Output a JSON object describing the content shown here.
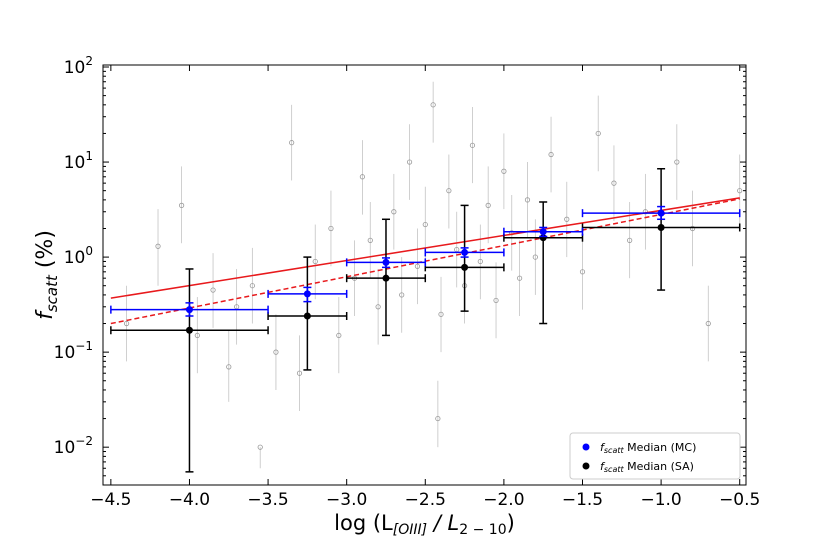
{
  "chart_data": {
    "type": "scatter",
    "xlabel": [
      {
        "text": "log (L",
        "italic": false
      },
      {
        "text": "[OIII]",
        "italic": true,
        "sub": true
      },
      {
        "text": " / L",
        "italic": true
      },
      {
        "text": "2 − 10",
        "italic": false,
        "sub": true
      },
      {
        "text": ")",
        "italic": false
      }
    ],
    "ylabel": [
      {
        "text": "f",
        "italic": true
      },
      {
        "text": "scatt",
        "italic": true,
        "sub": true
      },
      {
        "text": "  (%)",
        "italic": false
      }
    ],
    "xlim": [
      -4.55,
      -0.46
    ],
    "ylim": [
      0.004,
      105
    ],
    "log_y": true,
    "xticks": [
      {
        "value": -4.5,
        "label": "−4.5"
      },
      {
        "value": -4.0,
        "label": "−4.0"
      },
      {
        "value": -3.5,
        "label": "−3.5"
      },
      {
        "value": -3.0,
        "label": "−3.0"
      },
      {
        "value": -2.5,
        "label": "−2.5"
      },
      {
        "value": -2.0,
        "label": "−2.0"
      },
      {
        "value": -1.5,
        "label": "−1.5"
      },
      {
        "value": -1.0,
        "label": "−1.0"
      },
      {
        "value": -0.5,
        "label": "−0.5"
      }
    ],
    "yticks": [
      {
        "value": 0.01,
        "label": "10",
        "exponent": "−2"
      },
      {
        "value": 0.1,
        "label": "10",
        "exponent": "−1"
      },
      {
        "value": 1,
        "label": "10",
        "exponent": "0"
      },
      {
        "value": 10,
        "label": "10",
        "exponent": "1"
      },
      {
        "value": 100,
        "label": "10",
        "exponent": "2"
      }
    ],
    "background": {
      "color": "#aaaaaa",
      "x": [
        -4.4,
        -4.2,
        -4.05,
        -3.95,
        -3.85,
        -3.7,
        -3.6,
        -3.45,
        -3.35,
        -3.3,
        -3.2,
        -3.1,
        -3.05,
        -2.95,
        -2.9,
        -2.85,
        -2.8,
        -2.7,
        -2.65,
        -2.6,
        -2.55,
        -2.5,
        -2.45,
        -2.4,
        -2.35,
        -2.3,
        -2.25,
        -2.2,
        -2.15,
        -2.1,
        -2.05,
        -2.0,
        -1.95,
        -1.9,
        -1.85,
        -1.8,
        -1.7,
        -1.6,
        -1.5,
        -1.4,
        -1.3,
        -1.2,
        -1.1,
        -0.9,
        -0.8,
        -0.7,
        -0.5,
        -3.55,
        -3.75,
        -2.42
      ],
      "values": [
        0.2,
        1.3,
        3.5,
        0.15,
        0.45,
        0.3,
        0.5,
        0.1,
        16,
        0.06,
        0.9,
        2.0,
        0.15,
        0.6,
        7.0,
        1.5,
        0.3,
        3.0,
        0.4,
        10,
        0.8,
        2.2,
        40,
        0.25,
        5.0,
        1.2,
        0.5,
        15,
        0.9,
        3.5,
        0.35,
        8.0,
        1.8,
        0.6,
        4.0,
        1.0,
        12,
        2.5,
        0.7,
        20,
        6.0,
        1.5,
        3.0,
        10,
        2.0,
        0.2,
        5.0,
        0.01,
        0.07,
        0.02
      ],
      "ylow": [
        0.08,
        0.5,
        1.4,
        0.06,
        0.18,
        0.12,
        0.2,
        0.04,
        6.4,
        0.024,
        0.36,
        0.8,
        0.06,
        0.24,
        2.8,
        0.6,
        0.12,
        1.2,
        0.16,
        4,
        0.32,
        0.9,
        16,
        0.1,
        2,
        0.48,
        0.2,
        6,
        0.36,
        1.4,
        0.14,
        3.2,
        0.72,
        0.24,
        1.6,
        0.4,
        4.8,
        1,
        0.28,
        8,
        2.4,
        0.6,
        1.2,
        4,
        0.8,
        0.08,
        2,
        0.006,
        0.03,
        0.01
      ],
      "yhigh": [
        0.5,
        3.2,
        9,
        0.38,
        1.1,
        0.75,
        1.25,
        0.25,
        40,
        0.15,
        2.2,
        5,
        0.38,
        1.5,
        17,
        3.8,
        0.75,
        7.5,
        1.0,
        25,
        2.0,
        5.5,
        70,
        0.62,
        12,
        3,
        1.25,
        38,
        2.2,
        9,
        0.88,
        20,
        4.5,
        1.5,
        10,
        2.5,
        30,
        6.2,
        1.75,
        50,
        15,
        3.8,
        7.5,
        25,
        5,
        0.5,
        12,
        0.01,
        0.17,
        0.05
      ]
    },
    "series": [
      {
        "name": " Median (MC)",
        "name_symbol": "f",
        "name_subscript": "scatt",
        "color": "#0000ff",
        "x": [
          -4.0,
          -3.25,
          -2.75,
          -2.25,
          -1.75,
          -1.0
        ],
        "values": [
          0.28,
          0.41,
          0.88,
          1.12,
          1.85,
          2.9
        ],
        "ylow": [
          0.24,
          0.34,
          0.78,
          1.0,
          1.65,
          2.5
        ],
        "yhigh": [
          0.33,
          0.48,
          0.98,
          1.25,
          2.05,
          3.4
        ],
        "xlow": [
          -4.5,
          -3.5,
          -3.0,
          -2.5,
          -2.0,
          -1.5
        ],
        "xhigh": [
          -3.5,
          -3.0,
          -2.5,
          -2.0,
          -1.5,
          -0.5
        ]
      },
      {
        "name": " Median (SA)",
        "name_symbol": "f",
        "name_subscript": "scatt",
        "color": "#000000",
        "x": [
          -4.0,
          -3.25,
          -2.75,
          -2.25,
          -1.75,
          -1.0
        ],
        "values": [
          0.17,
          0.24,
          0.6,
          0.78,
          1.6,
          2.05
        ],
        "ylow": [
          0.0055,
          0.065,
          0.15,
          0.27,
          0.2,
          0.45
        ],
        "yhigh": [
          0.75,
          1.0,
          2.5,
          3.5,
          3.8,
          8.5
        ],
        "xlow": [
          -4.5,
          -3.5,
          -3.0,
          -2.5,
          -2.0,
          -1.5
        ],
        "xhigh": [
          -3.5,
          -3.0,
          -2.5,
          -2.0,
          -1.5,
          -0.5
        ]
      }
    ],
    "fits": [
      {
        "color": "#e8191c",
        "dashed": false,
        "x": [
          -4.5,
          -0.5
        ],
        "values": [
          0.37,
          4.2
        ]
      },
      {
        "color": "#e8191c",
        "dashed": true,
        "x": [
          -4.5,
          -0.5
        ],
        "values": [
          0.2,
          4.1
        ]
      }
    ],
    "legend": "lower right"
  }
}
